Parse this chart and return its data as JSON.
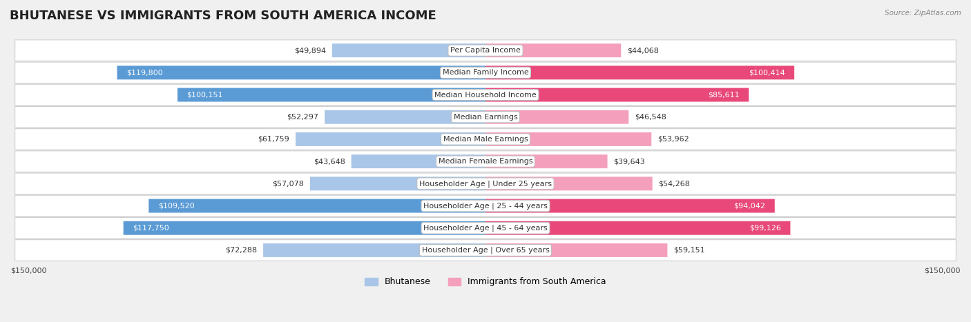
{
  "title": "BHUTANESE VS IMMIGRANTS FROM SOUTH AMERICA INCOME",
  "source": "Source: ZipAtlas.com",
  "categories": [
    "Per Capita Income",
    "Median Family Income",
    "Median Household Income",
    "Median Earnings",
    "Median Male Earnings",
    "Median Female Earnings",
    "Householder Age | Under 25 years",
    "Householder Age | 25 - 44 years",
    "Householder Age | 45 - 64 years",
    "Householder Age | Over 65 years"
  ],
  "bhutanese": [
    49894,
    119800,
    100151,
    52297,
    61759,
    43648,
    57078,
    109520,
    117750,
    72288
  ],
  "immigrants": [
    44068,
    100414,
    85611,
    46548,
    53962,
    39643,
    54268,
    94042,
    99126,
    59151
  ],
  "max_val": 150000,
  "blue_dark": "#5b9bd5",
  "blue_light": "#a9c6e8",
  "pink_dark": "#e8497a",
  "pink_light": "#f4a0bc",
  "bar_height": 0.62,
  "bg_color": "#f0f0f0",
  "row_bg_color": "#ffffff",
  "row_border_color": "#d0d0d0",
  "title_fontsize": 13,
  "label_fontsize": 8,
  "value_fontsize": 8,
  "legend_fontsize": 9,
  "blue_legend": "Bhutanese",
  "pink_legend": "Immigrants from South America",
  "xlabel_left": "$150,000",
  "xlabel_right": "$150,000"
}
